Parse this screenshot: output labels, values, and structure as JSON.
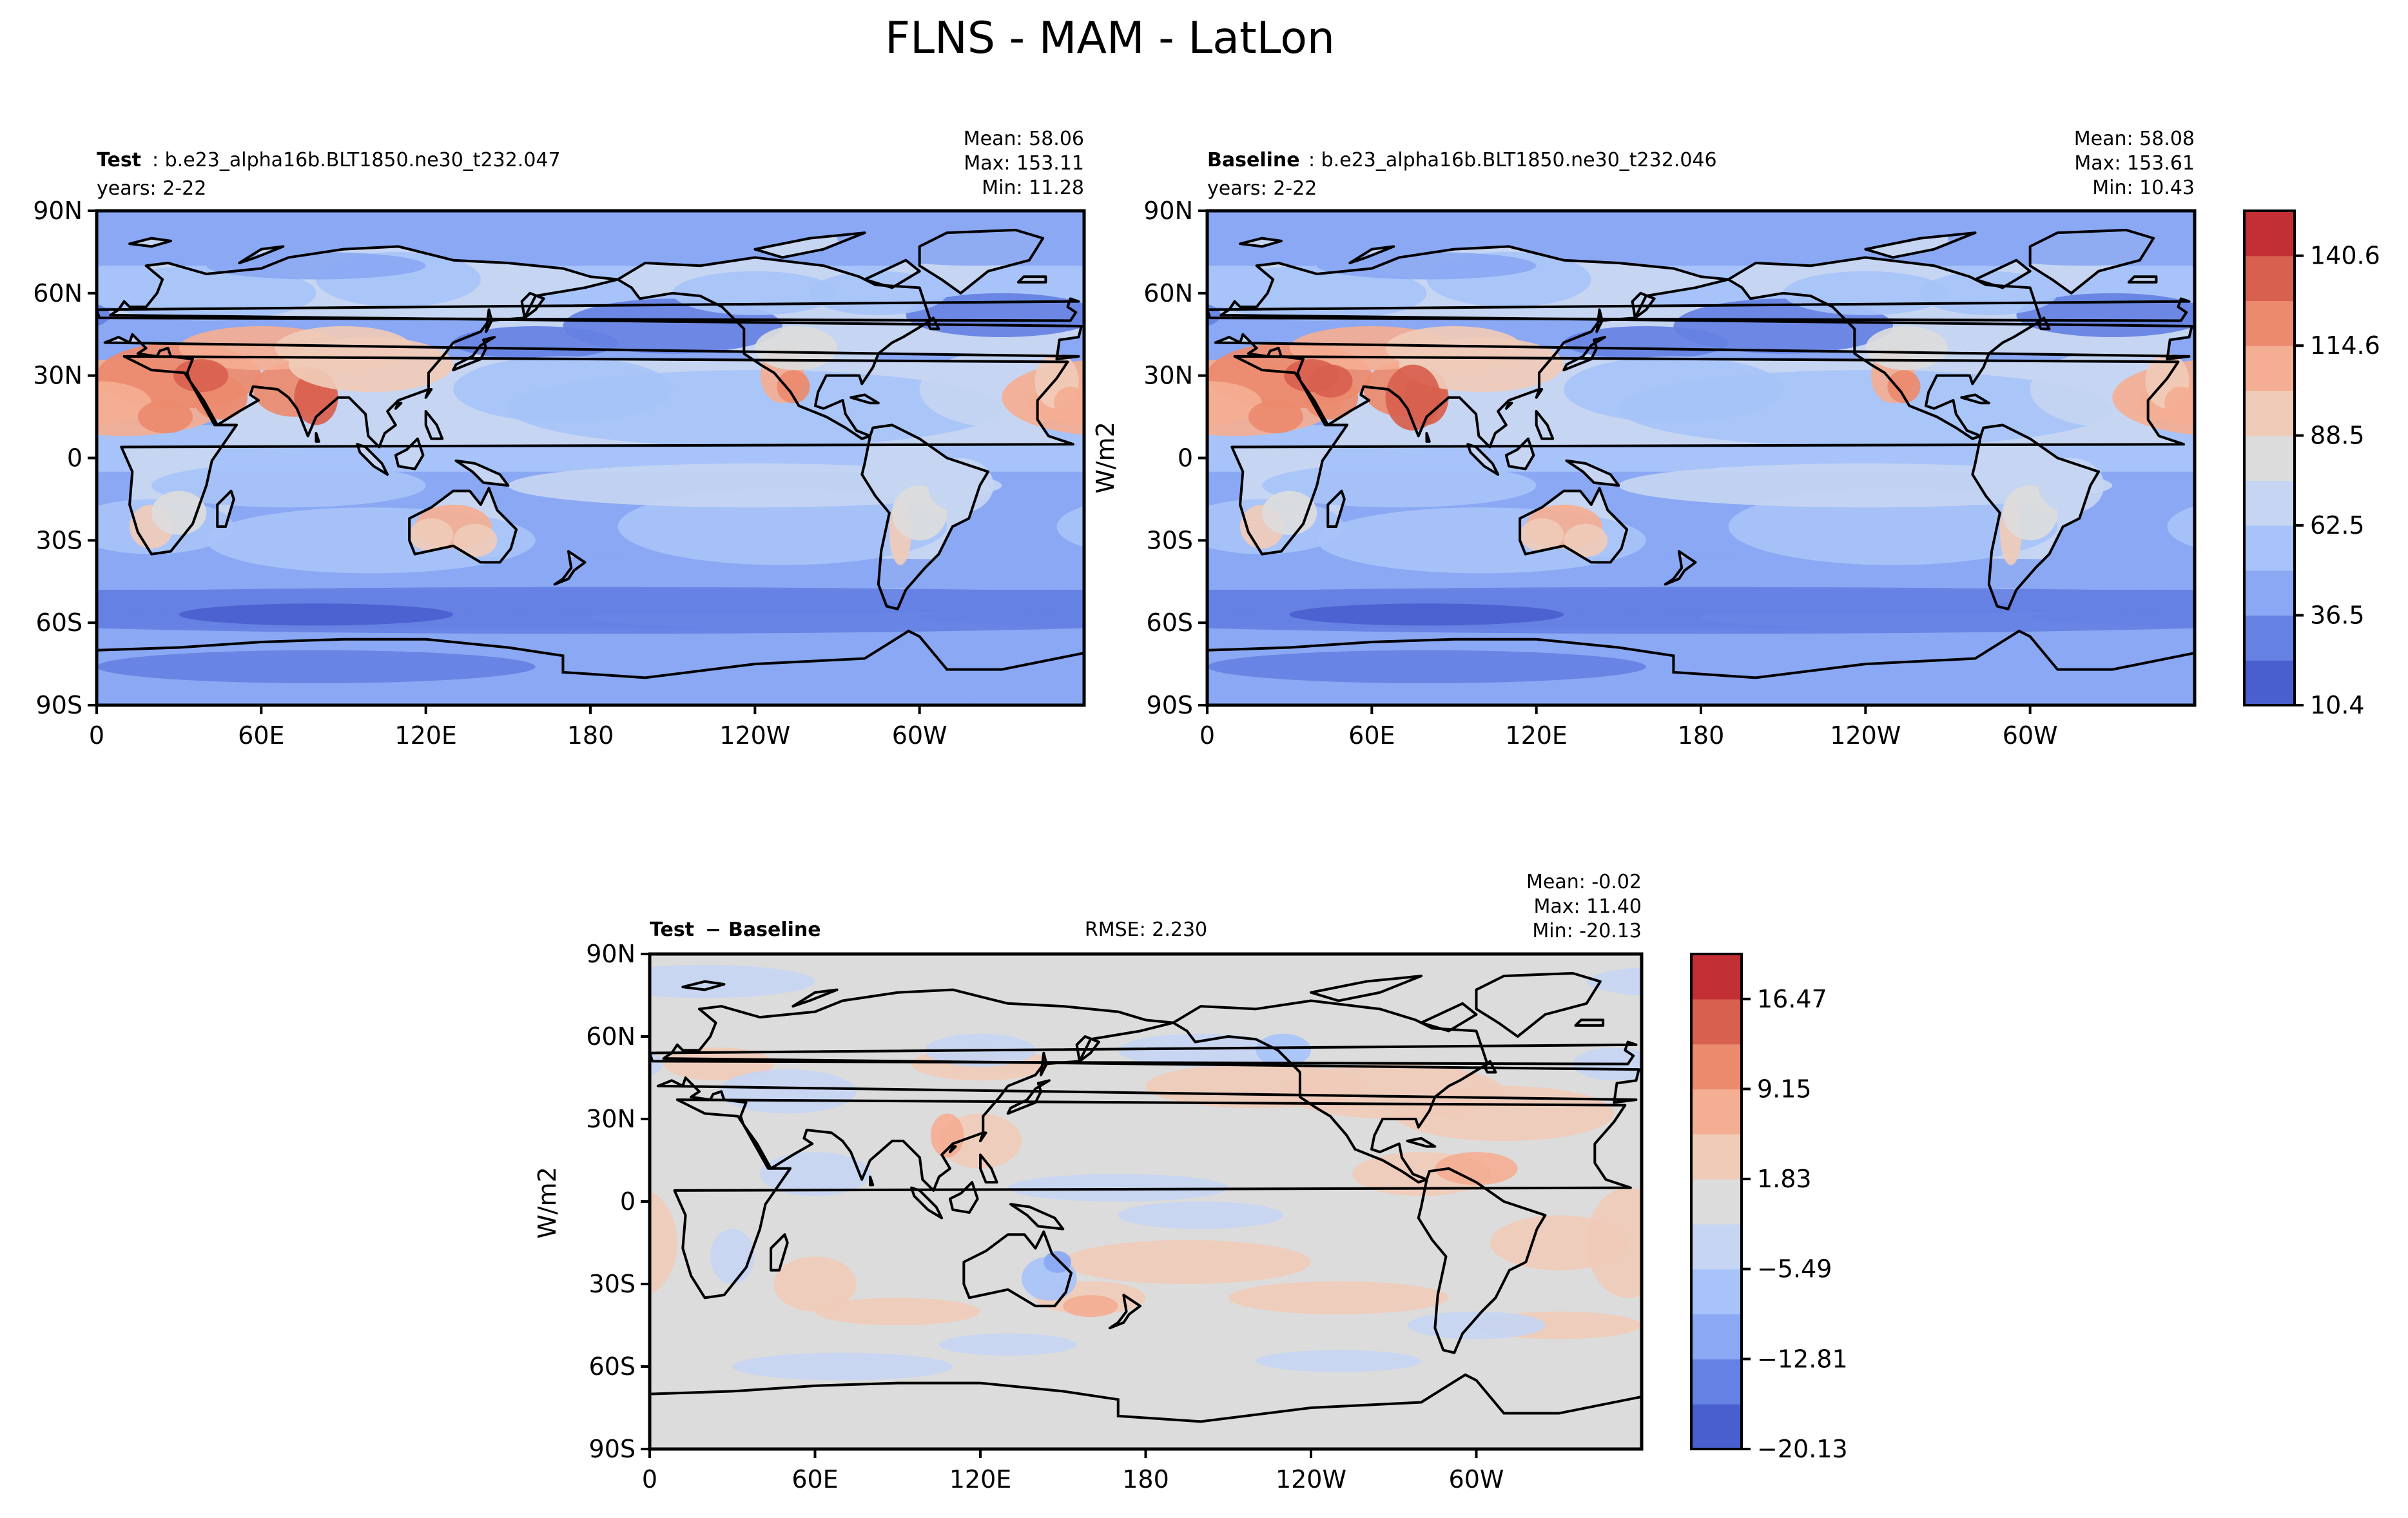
{
  "figure": {
    "title": "FLNS - MAM - LatLon"
  },
  "colors": {
    "coolwarm": [
      "#4a5fcf",
      "#6581e3",
      "#8aa8f3",
      "#a7c3f9",
      "#c5d5f2",
      "#dcdcdc",
      "#f0cbb8",
      "#f4ae93",
      "#ec8a6e",
      "#d8604e",
      "#c22f35"
    ],
    "coast": "#000000",
    "background": "#ffffff"
  },
  "chart_data": [
    {
      "type": "heatmap",
      "projection": "cylindrical lat-lon map with coastlines",
      "title_bold": "Test",
      "title_rest": ": b.e23_alpha16b.BLT1850.ne30_t232.047",
      "years": "years: 2-22",
      "stats": {
        "mean": "Mean: 58.06",
        "max": "Max: 153.11",
        "min": "Min: 11.28"
      },
      "xticks": [
        "0",
        "60E",
        "120E",
        "180",
        "120W",
        "60W"
      ],
      "yticks": [
        "90N",
        "60N",
        "30N",
        "0",
        "30S",
        "60S",
        "90S"
      ]
    },
    {
      "type": "heatmap",
      "projection": "cylindrical lat-lon map with coastlines",
      "title_bold": "Baseline",
      "title_rest": ": b.e23_alpha16b.BLT1850.ne30_t232.046",
      "years": "years: 2-22",
      "stats": {
        "mean": "Mean: 58.08",
        "max": "Max: 153.61",
        "min": "Min: 10.43"
      },
      "xticks": [
        "0",
        "60E",
        "120E",
        "180",
        "120W",
        "60W"
      ],
      "yticks": [
        "90N",
        "60N",
        "30N",
        "0",
        "30S",
        "60S",
        "90S"
      ],
      "colorbar": {
        "label": "W/m2",
        "ticks": [
          "140.6",
          "114.6",
          "88.5",
          "62.5",
          "36.5",
          "10.4"
        ],
        "levels": 11
      }
    },
    {
      "type": "heatmap",
      "projection": "cylindrical lat-lon map with coastlines",
      "title_bold_1": "Test",
      "title_sep": "−",
      "title_bold_2": "Baseline",
      "rmse": "RMSE: 2.230",
      "stats": {
        "mean": "Mean: -0.02",
        "max": "Max: 11.40",
        "min": "Min: -20.13"
      },
      "xticks": [
        "0",
        "60E",
        "120E",
        "180",
        "120W",
        "60W"
      ],
      "yticks": [
        "90N",
        "60N",
        "30N",
        "0",
        "30S",
        "60S",
        "90S"
      ],
      "ylabel": "W/m2",
      "colorbar": {
        "label": "",
        "ticks": [
          "16.47",
          "9.15",
          "1.83",
          "−5.49",
          "−12.81",
          "−20.13"
        ],
        "levels": 11
      }
    }
  ]
}
